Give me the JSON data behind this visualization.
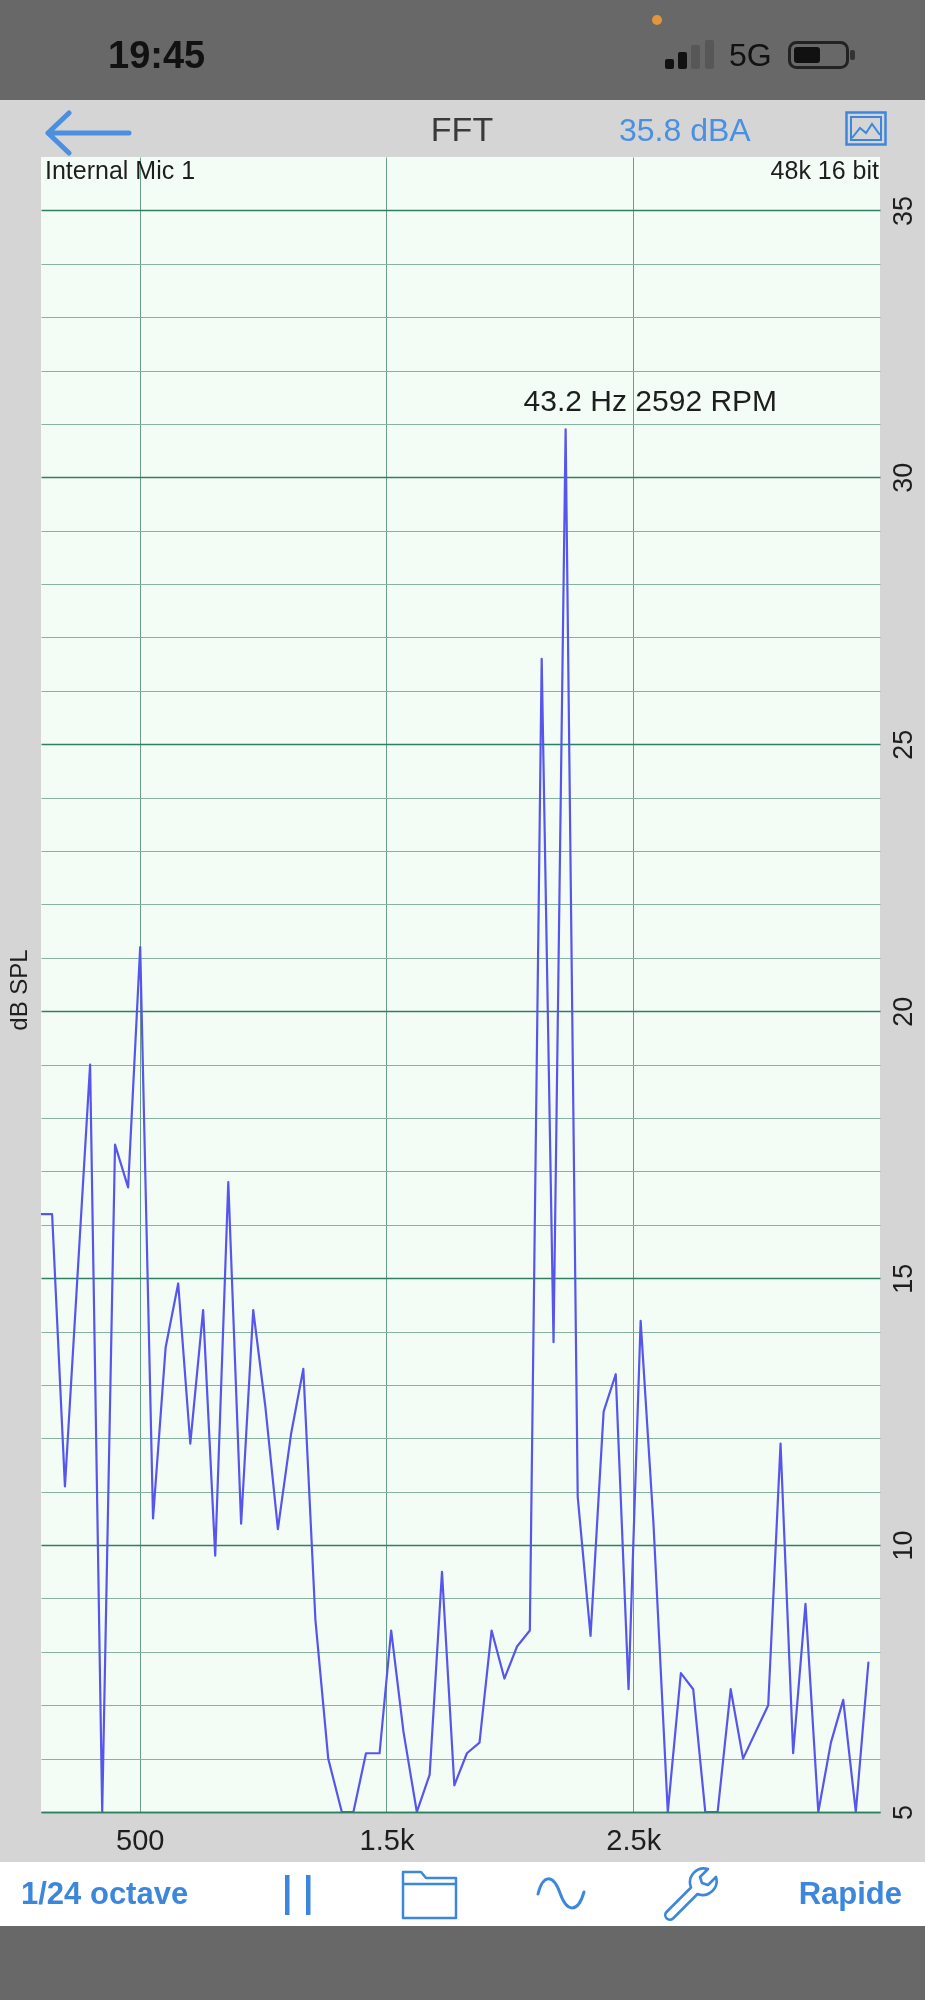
{
  "chart_data": {
    "type": "line",
    "title": "FFT",
    "subtitle": "35.8 dBA",
    "ylabel": "dB SPL",
    "x": [
      100,
      145,
      197,
      299,
      348,
      400,
      453,
      502,
      554,
      605,
      656,
      705,
      757,
      806,
      859,
      911,
      960,
      1009,
      1060,
      1114,
      1163,
      1212,
      1264,
      1319,
      1366,
      1417,
      1472,
      1519,
      1569,
      1623,
      1675,
      1725,
      1775,
      1826,
      1877,
      1926,
      1978,
      2029,
      2081,
      2129,
      2177,
      2226,
      2275,
      2327,
      2380,
      2429,
      2481,
      2530,
      2582,
      2640,
      2693,
      2743,
      2792,
      2842,
      2895,
      2945,
      3047,
      3097,
      3148,
      3198,
      3250,
      3301,
      3351,
      3402,
      3453
    ],
    "series": [
      {
        "color": "#5656ee",
        "values": [
          16.2,
          16.2,
          11.1,
          19.0,
          5,
          17.5,
          16.7,
          21.2,
          10.5,
          13.7,
          14.9,
          11.9,
          14.4,
          9.8,
          16.8,
          10.4,
          14.4,
          12.6,
          10.3,
          12.1,
          13.3,
          8.6,
          6.0,
          5,
          5,
          6.1,
          6.1,
          8.4,
          6.5,
          5,
          5.7,
          9.5,
          5.5,
          6.1,
          6.3,
          8.4,
          7.5,
          8.1,
          8.4,
          26.6,
          13.8,
          30.9,
          10.9,
          8.3,
          12.5,
          13.2,
          7.3,
          14.2,
          10.4,
          5,
          7.6,
          7.3,
          5,
          5,
          7.3,
          6.0,
          7.0,
          11.9,
          6.1,
          8.9,
          5,
          6.3,
          7.1,
          5,
          7.8
        ]
      }
    ],
    "xlim": [
      100,
      3500
    ],
    "xticks": [
      500,
      {
        "value": 1500,
        "label": "1.5k"
      },
      {
        "value": 2500,
        "label": "2.5k"
      }
    ],
    "ylim": [
      5,
      36
    ],
    "yticks": [
      5,
      {
        "value": 6,
        "label": null
      },
      {
        "value": 7,
        "label": null
      },
      {
        "value": 8,
        "label": null
      },
      {
        "value": 9,
        "label": null
      },
      10,
      {
        "value": 11,
        "label": null
      },
      {
        "value": 12,
        "label": null
      },
      {
        "value": 13,
        "label": null
      },
      {
        "value": 14,
        "label": null
      },
      15,
      {
        "value": 16,
        "label": null
      },
      {
        "value": 17,
        "label": null
      },
      {
        "value": 18,
        "label": null
      },
      {
        "value": 19,
        "label": null
      },
      20,
      {
        "value": 21,
        "label": null
      },
      {
        "value": 22,
        "label": null
      },
      {
        "value": 23,
        "label": null
      },
      {
        "value": 24,
        "label": null
      },
      25,
      {
        "value": 26,
        "label": null
      },
      {
        "value": 27,
        "label": null
      },
      {
        "value": 28,
        "label": null
      },
      {
        "value": 29,
        "label": null
      },
      30,
      {
        "value": 31,
        "label": null
      },
      {
        "value": 32,
        "label": null
      },
      {
        "value": 33,
        "label": null
      },
      {
        "value": 34,
        "label": null
      },
      35
    ],
    "grid": true,
    "line_style": "solid",
    "annotations": [
      "19:45",
      "5G",
      "Internal Mic 1",
      "48k 16 bit",
      {
        "text": "43.2 Hz 2592 RPM",
        "x": 2226,
        "y": 30.9
      },
      "1/24 octave",
      "Rapide"
    ]
  }
}
